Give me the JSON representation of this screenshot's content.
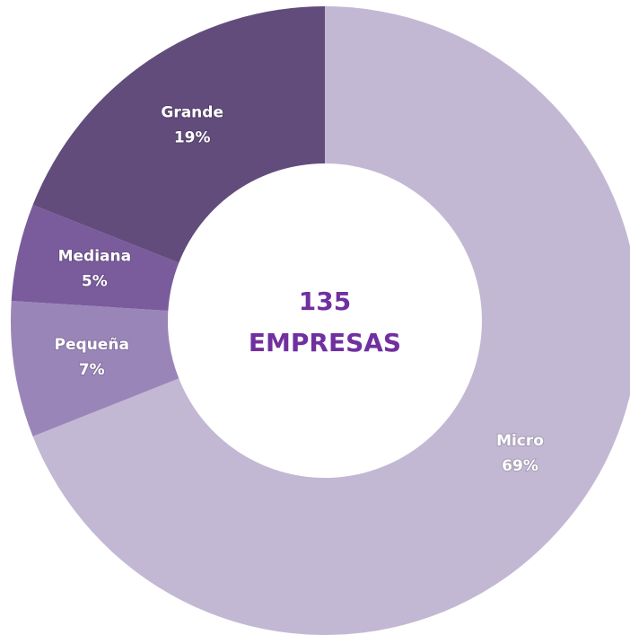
{
  "chart_data": {
    "type": "donut",
    "categories": [
      "Micro",
      "Pequeña",
      "Mediana",
      "Grande"
    ],
    "values": [
      69,
      7,
      5,
      19
    ],
    "value_labels": [
      "69%",
      "7%",
      "5%",
      "19%"
    ],
    "colors": [
      "#c3b8d3",
      "#9a85b9",
      "#7a5c9d",
      "#624c7c"
    ],
    "center_text": {
      "value": 135,
      "label": "EMPRESAS"
    }
  }
}
